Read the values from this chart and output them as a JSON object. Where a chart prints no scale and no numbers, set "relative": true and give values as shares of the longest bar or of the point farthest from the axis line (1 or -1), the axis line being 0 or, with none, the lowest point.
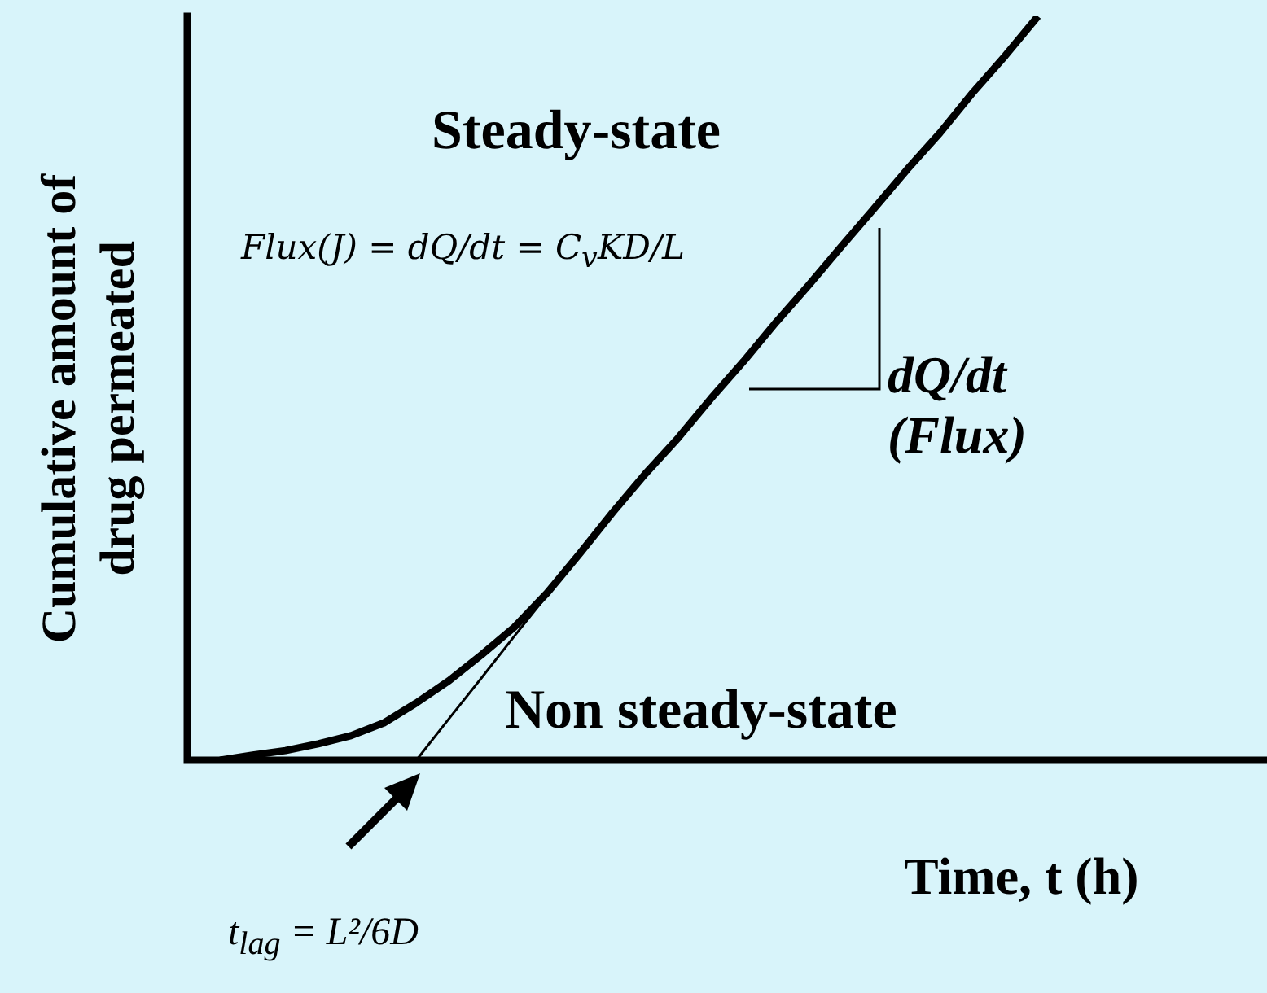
{
  "chart_data": {
    "type": "line",
    "relative": true,
    "xlabel": "Time, t (h)",
    "ylabel": "Cumulative amount of drug permeated",
    "categories": [
      null,
      null,
      null,
      null,
      null,
      null,
      null,
      null,
      null,
      null,
      null,
      null,
      null,
      null,
      null,
      null,
      null,
      null,
      null,
      null,
      null,
      null,
      null,
      null,
      null,
      null,
      null,
      null,
      null,
      null,
      null,
      null,
      null,
      null
    ],
    "series": [
      {
        "color": "#000000",
        "values": [
          null,
          0,
          0.007,
          0.013,
          0.022,
          0.033,
          0.05,
          0.077,
          0.107,
          0.142,
          0.179,
          0.225,
          0.278,
          0.333,
          0.385,
          0.433,
          0.486,
          0.536,
          0.589,
          0.639,
          0.691,
          0.742,
          0.794,
          0.843,
          0.897,
          0.947,
          1,
          null,
          null,
          null,
          null,
          null,
          null,
          null
        ]
      },
      {
        "type": "line",
        "color": "#000000",
        "values": [
          null,
          null,
          null,
          null,
          null,
          null,
          null,
          0,
          0.056,
          0.111,
          0.167,
          0.222,
          0.278,
          null,
          null,
          null,
          null,
          null,
          null,
          null,
          null,
          null,
          null,
          null,
          null,
          null,
          null,
          null,
          null,
          null,
          null,
          null,
          null,
          null
        ]
      }
    ],
    "annotations": [
      "Steady-state",
      "Flux(J) = dQ/dt = C$_{v}$KD/L",
      "dQ/dt (Flux)",
      "Non steady-state",
      "t$_{lag}$ = L²/6D"
    ],
    "marker": "none",
    "legend": false
  }
}
